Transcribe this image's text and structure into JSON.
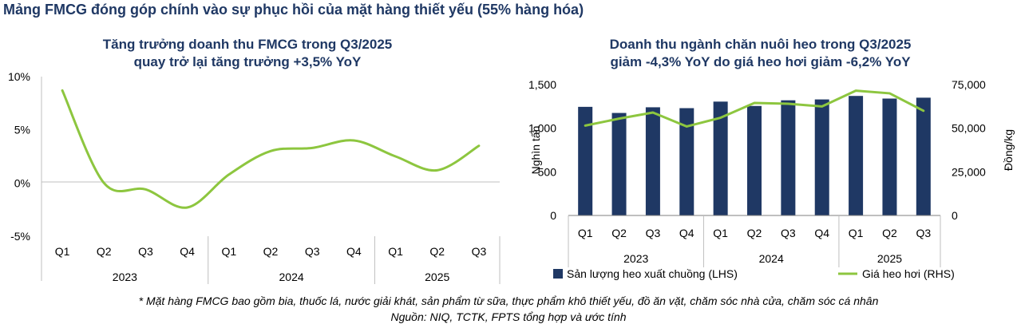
{
  "page": {
    "title": "Mảng FMCG đóng góp chính vào sự phục hồi của mặt hàng thiết yếu (55% hàng hóa)",
    "footnote_1": "* Mặt hàng FMCG bao gồm bia, thuốc lá, nước giải khát, sản phẩm từ sữa, thực phẩm khô thiết yếu, đồ ăn vặt, chăm sóc nhà cửa, chăm sóc cá nhân",
    "footnote_2": "Nguồn: NIQ, TCTK, FPTS tổng hợp và ước tính"
  },
  "colors": {
    "title": "#1f3864",
    "line": "#8dc63f",
    "bar": "#1f3864",
    "axis": "#bfbfbf"
  },
  "chart_data": [
    {
      "type": "line",
      "title_line1": "Tăng trưởng doanh thu FMCG trong Q3/2025",
      "title_line2": "quay trở lại tăng trưởng +3,5% YoY",
      "categories": [
        "Q1",
        "Q2",
        "Q3",
        "Q4",
        "Q1",
        "Q2",
        "Q3",
        "Q4",
        "Q1",
        "Q2",
        "Q3"
      ],
      "year_groups": [
        {
          "label": "2023",
          "count": 4
        },
        {
          "label": "2024",
          "count": 4
        },
        {
          "label": "2025",
          "count": 3
        }
      ],
      "y_ticks": [
        "10%",
        "5%",
        "0%",
        "-5%"
      ],
      "ylim": [
        -5,
        10
      ],
      "series": [
        {
          "values": [
            8.7,
            0.0,
            -0.6,
            -2.3,
            0.8,
            3.0,
            3.3,
            4.0,
            2.5,
            1.2,
            3.5
          ]
        }
      ],
      "grid": false
    },
    {
      "type": "bar",
      "title_line1": "Doanh thu ngành chăn nuôi heo trong Q3/2025",
      "title_line2": "giảm -4,3% YoY do giá heo hơi giảm -6,2% YoY",
      "categories": [
        "Q1",
        "Q2",
        "Q3",
        "Q4",
        "Q1",
        "Q2",
        "Q3",
        "Q4",
        "Q1",
        "Q2",
        "Q3"
      ],
      "year_groups": [
        {
          "label": "2023",
          "count": 4
        },
        {
          "label": "2024",
          "count": 4
        },
        {
          "label": "2025",
          "count": 3
        }
      ],
      "ylabel_left": "Nghìn tấn",
      "ylabel_right": "Đồng/kg",
      "y_left_ticks": [
        "1,500",
        "1,000",
        "500",
        "0"
      ],
      "y_right_ticks": [
        "75,000",
        "50,000",
        "25,000",
        "0"
      ],
      "ylim_left": [
        0,
        1500
      ],
      "ylim_right": [
        0,
        75000
      ],
      "series": [
        {
          "name": "Sản lượng heo xuất chuồng (LHS)",
          "kind": "bar",
          "axis": "left",
          "values": [
            1245,
            1175,
            1240,
            1230,
            1305,
            1255,
            1320,
            1330,
            1370,
            1340,
            1350
          ]
        },
        {
          "name": "Giá heo hơi (RHS)",
          "kind": "line",
          "axis": "right",
          "values": [
            51500,
            55500,
            59000,
            51000,
            56000,
            64500,
            64000,
            62500,
            71500,
            70000,
            60000
          ]
        }
      ],
      "legend_position": "bottom",
      "grid": false
    }
  ]
}
